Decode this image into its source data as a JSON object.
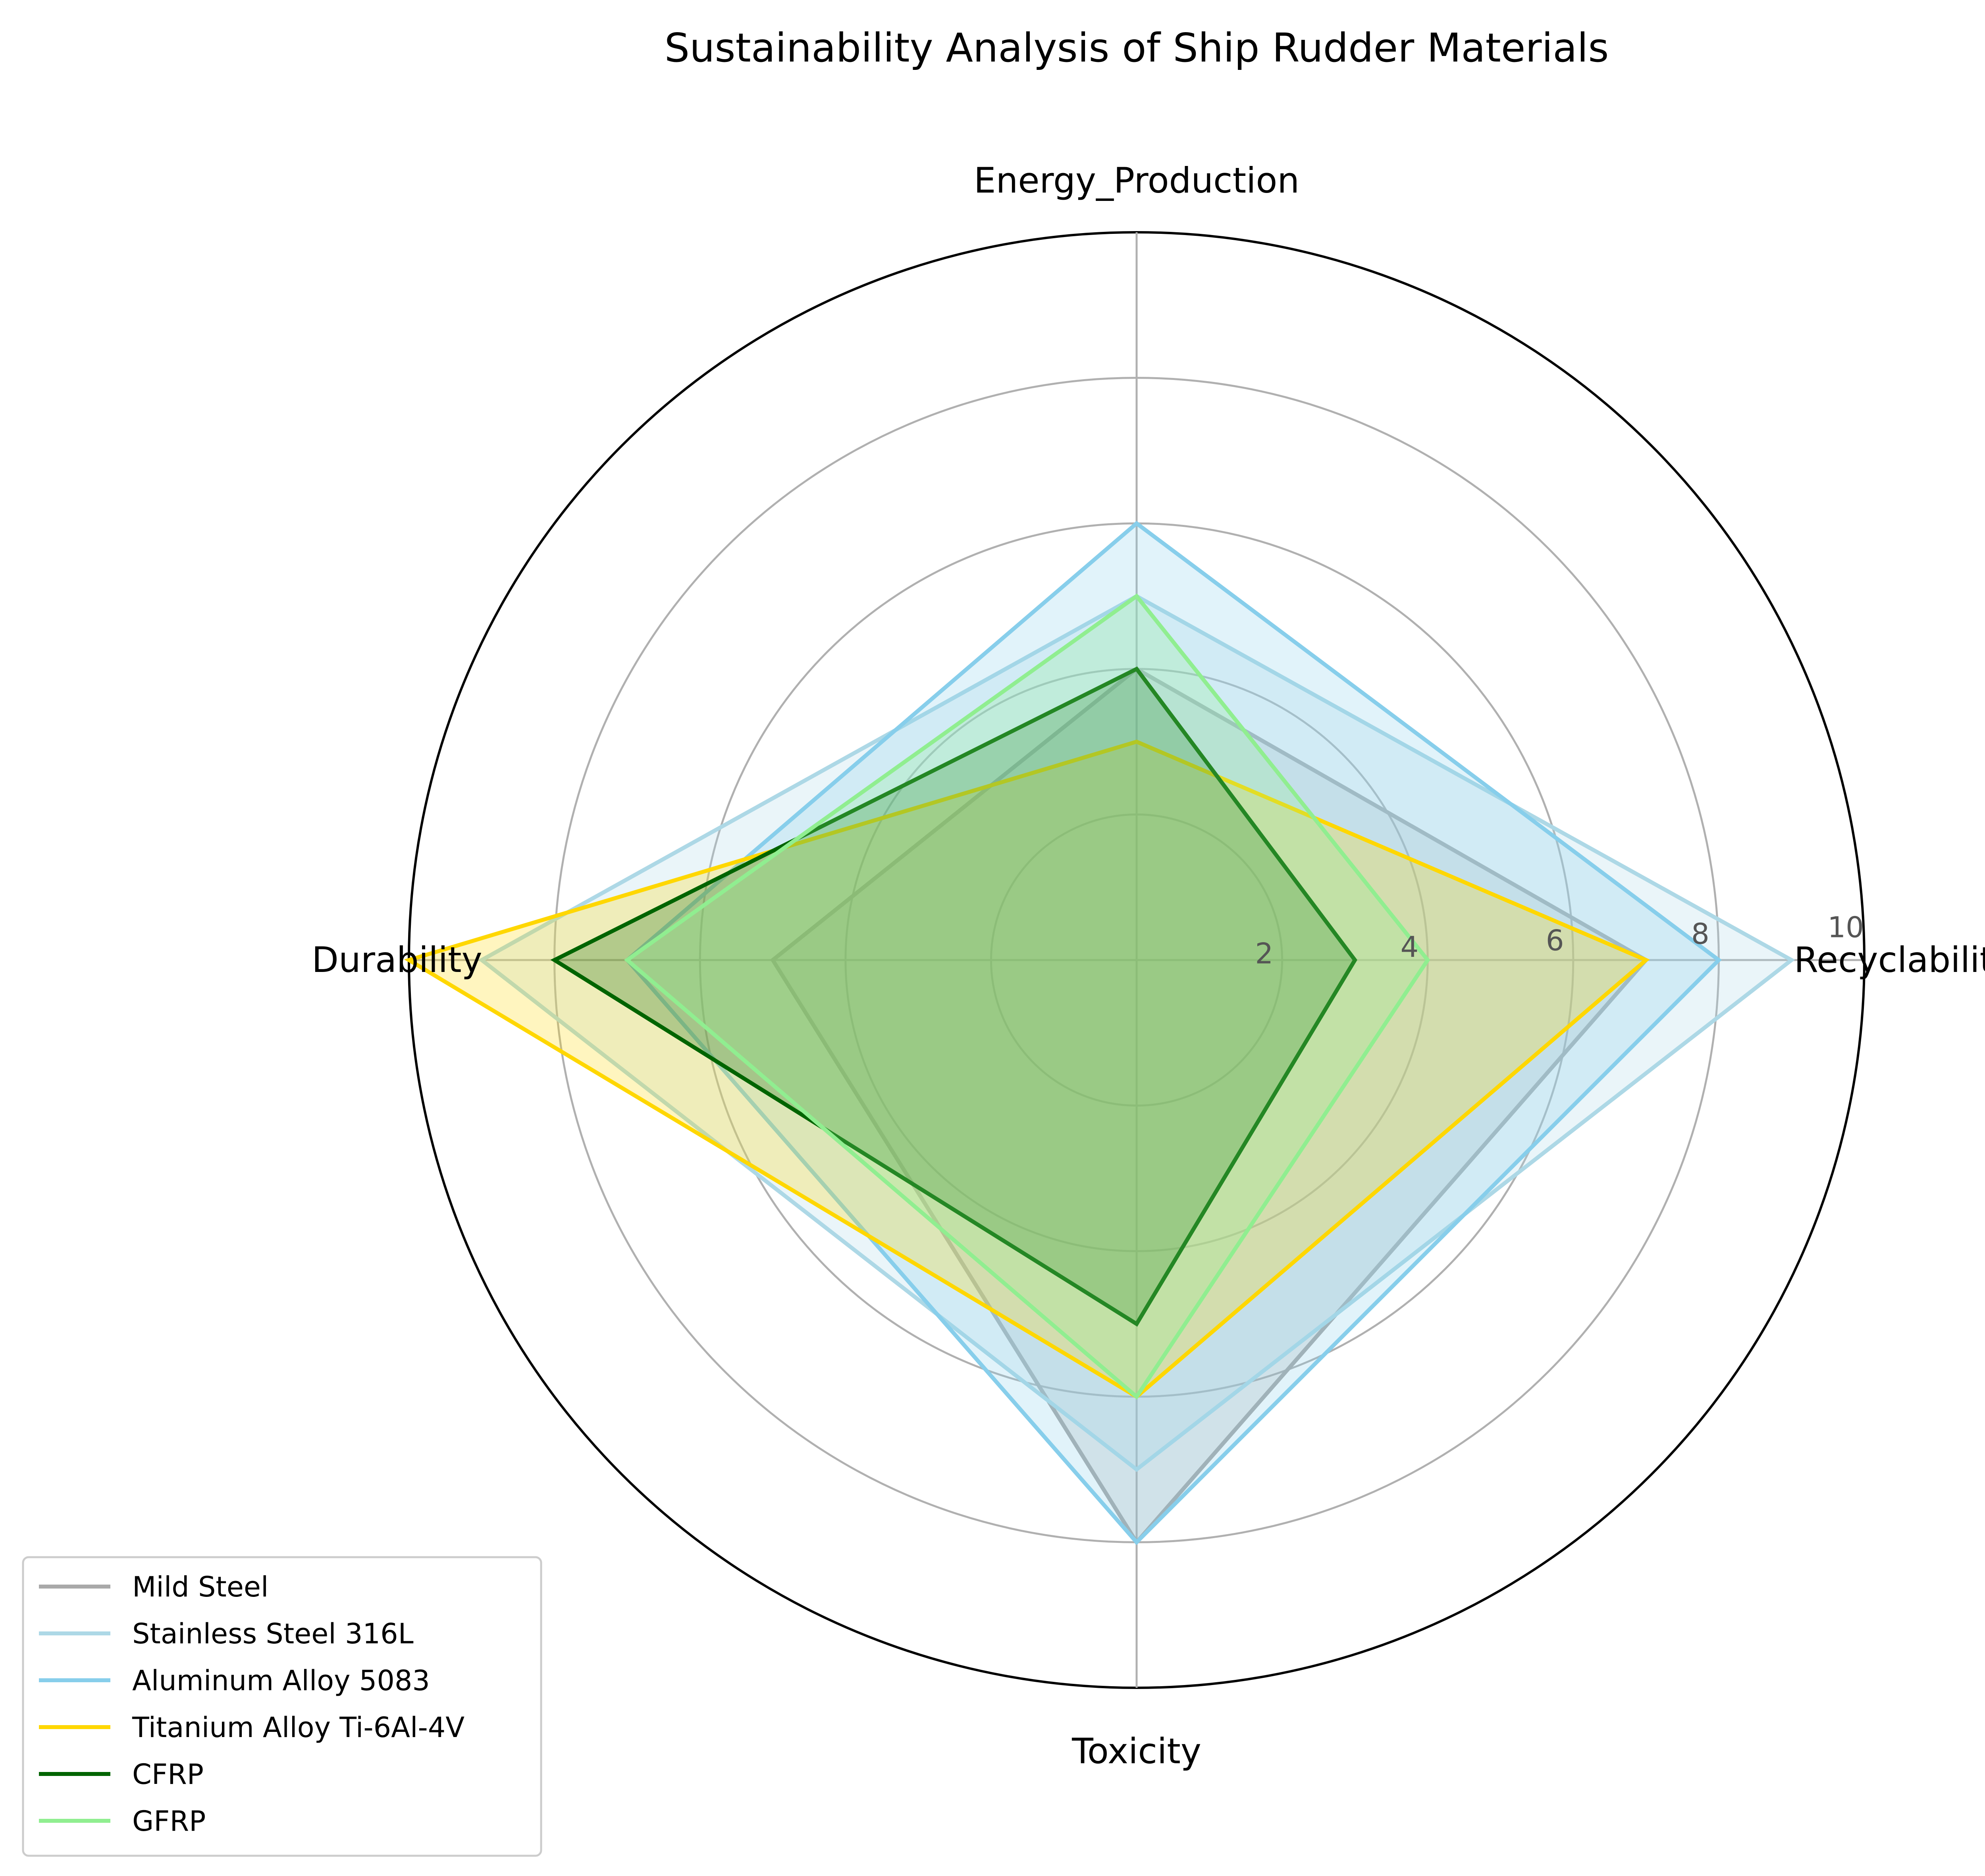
{
  "chart_data": {
    "type": "radar",
    "title": "Sustainability Analysis of Ship Rudder Materials",
    "axes": [
      "Recyclability",
      "Energy_Production",
      "Durability",
      "Toxicity"
    ],
    "rlim": [
      0,
      10
    ],
    "rticks": [
      2,
      4,
      6,
      8,
      10
    ],
    "rtick_labels": [
      "2",
      "4",
      "6",
      "8",
      "10"
    ],
    "grid": true,
    "legend_position": "lower-left",
    "series": [
      {
        "name": "Mild Steel",
        "color": "#a9a9a9",
        "values": [
          7,
          4,
          5,
          8
        ]
      },
      {
        "name": "Stainless Steel 316L",
        "color": "#add8e6",
        "values": [
          9,
          5,
          9,
          7
        ]
      },
      {
        "name": "Aluminum Alloy 5083",
        "color": "#87ceeb",
        "values": [
          8,
          6,
          7,
          8
        ]
      },
      {
        "name": "Titanium Alloy Ti-6Al-4V",
        "color": "#ffd700",
        "values": [
          7,
          3,
          10,
          6
        ]
      },
      {
        "name": "CFRP",
        "color": "#006400",
        "values": [
          3,
          4,
          8,
          5
        ]
      },
      {
        "name": "GFRP",
        "color": "#90ee90",
        "values": [
          4,
          5,
          7,
          6
        ]
      }
    ]
  }
}
